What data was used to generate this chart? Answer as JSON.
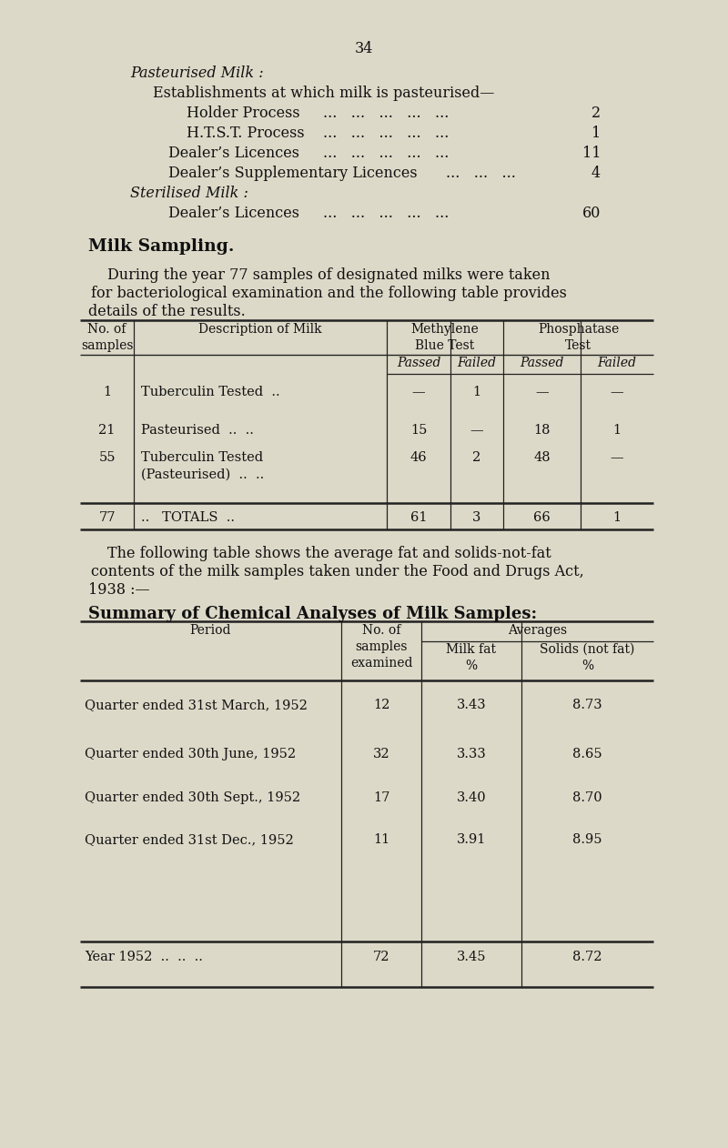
{
  "bg_color": "#ddd9c8",
  "page_number": "34",
  "pasteurised_milk_heading": "Pasteurised Milk :",
  "establishments_line": "Establishments at which milk is pasteurised—",
  "holder_process_label": "Holder Process",
  "holder_process_dots": "...   ...   ...   ...   ...",
  "holder_process_value": "2",
  "htst_label": "H.T.S.T. Process",
  "htst_dots": "...   ...   ...   ...   ...",
  "htst_value": "1",
  "dealers_lic_label": "Dealer’s Licences",
  "dealers_lic_dots": "...   ...   ...   ...   ...",
  "dealers_lic_value": "11",
  "dealers_supp_label": "Dealer’s Supplementary Licences",
  "dealers_supp_dots": "...   ...   ...",
  "dealers_supp_value": "4",
  "sterilised_milk_heading": "Sterilised Milk :",
  "sterilised_dealers_label": "Dealer’s Licences",
  "sterilised_dealers_dots": "...   ...   ...   ...   ...",
  "sterilised_dealers_value": "60",
  "milk_sampling_heading": "Milk Sampling.",
  "para1_line1": "During the year 77 samples of designated milks were taken",
  "para1_line2": "for bacteriological examination and the following table provides",
  "para1_line3": "details of the results.",
  "table1_rows": [
    [
      "1",
      "Tuberculin Tested  ..",
      "—",
      "1",
      "—",
      "—"
    ],
    [
      "21",
      "Pasteurised  ..  ..",
      "15",
      "—",
      "18",
      "1"
    ],
    [
      "55",
      "Tuberculin Tested\n(Pasteurised)  ..  ..",
      "46",
      "2",
      "48",
      "—"
    ],
    [
      "77",
      "..   TOTALS  ..",
      "61",
      "3",
      "66",
      "1"
    ]
  ],
  "para2_line1": "The following table shows the average fat and solids-not-fat",
  "para2_line2": "contents of the milk samples taken under the Food and Drugs Act,",
  "para2_line3": "1938 :—",
  "table2_title": "Summary of Chemical Analyses of Milk Samples:",
  "table2_rows": [
    [
      "Quarter ended 31st March, 1952",
      "12",
      "3.43",
      "8.73"
    ],
    [
      "Quarter ended 30th June, 1952",
      "32",
      "3.33",
      "8.65"
    ],
    [
      "Quarter ended 30th Sept., 1952",
      "17",
      "3.40",
      "8.70"
    ],
    [
      "Quarter ended 31st Dec., 1952",
      "11",
      "3.91",
      "8.95"
    ],
    [
      "Year 1952  ..  ..  ..",
      "72",
      "3.45",
      "8.72"
    ]
  ]
}
